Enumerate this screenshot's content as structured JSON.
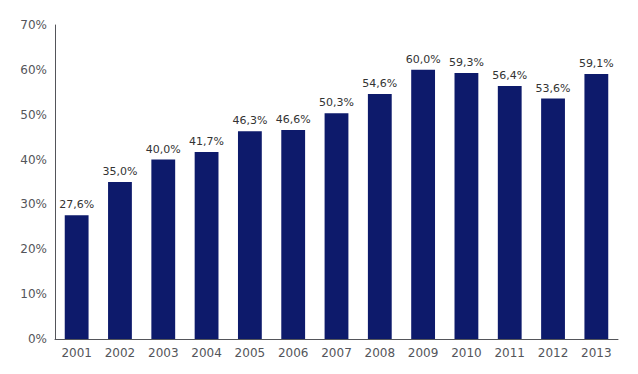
{
  "chart_data": {
    "type": "bar",
    "categories": [
      "2001",
      "2002",
      "2003",
      "2004",
      "2005",
      "2006",
      "2007",
      "2008",
      "2009",
      "2010",
      "2011",
      "2012",
      "2013"
    ],
    "values": [
      27.6,
      35.0,
      40.0,
      41.7,
      46.3,
      46.6,
      50.3,
      54.6,
      60.0,
      59.3,
      56.4,
      53.6,
      59.1
    ],
    "value_labels": [
      "27,6%",
      "35,0%",
      "40,0%",
      "41,7%",
      "46,3%",
      "46,6%",
      "50,3%",
      "54,6%",
      "60,0%",
      "59,3%",
      "56,4%",
      "53,6%",
      "59,1%"
    ],
    "data_labels": true,
    "color": "#0D1A6B",
    "ylim": [
      0,
      70
    ],
    "yticks": [
      {
        "value": 0,
        "label": "0%"
      },
      {
        "value": 10,
        "label": "10%"
      },
      {
        "value": 20,
        "label": "20%"
      },
      {
        "value": 30,
        "label": "30%"
      },
      {
        "value": 40,
        "label": "40%"
      },
      {
        "value": 50,
        "label": "50%"
      },
      {
        "value": 60,
        "label": "60%"
      },
      {
        "value": 70,
        "label": "70%"
      }
    ],
    "grid": false
  }
}
